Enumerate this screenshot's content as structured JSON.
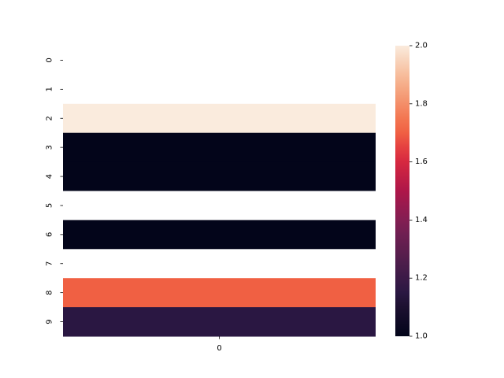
{
  "chart_data": {
    "type": "heatmap",
    "row_labels": [
      "0",
      "1",
      "2",
      "3",
      "4",
      "5",
      "6",
      "7",
      "8",
      "9"
    ],
    "column_labels": [
      "0"
    ],
    "values": [
      null,
      null,
      2.0,
      1.0,
      1.0,
      null,
      1.0,
      null,
      1.7,
      1.15
    ],
    "colorbar": {
      "vmin": 1.0,
      "vmax": 2.0,
      "tick_values": [
        1.0,
        1.2,
        1.4,
        1.6,
        1.8,
        2.0
      ],
      "tick_labels": [
        "1.0",
        "1.2",
        "1.4",
        "1.6",
        "1.8",
        "2.0"
      ],
      "colormap": "rocket"
    },
    "title": "",
    "xlabel": "",
    "ylabel": "",
    "missing_color": "#ffffff"
  }
}
